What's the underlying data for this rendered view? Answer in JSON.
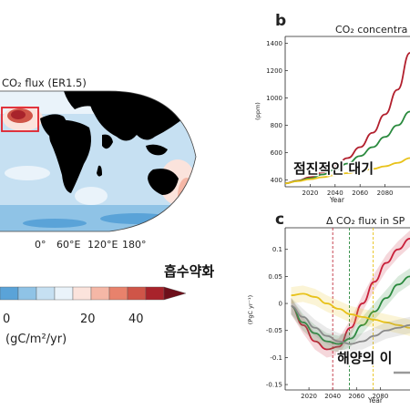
{
  "map_panel": {
    "title": "CO₂ flux (ER1.5)",
    "lon_ticks": [
      "0°",
      "60°E",
      "120°E",
      "180°"
    ],
    "colorbar": {
      "ticks": [
        "0",
        "20",
        "40"
      ],
      "unit": "(gC/m²/yr)",
      "colors": [
        "#5aa3d8",
        "#8fc3e6",
        "#c6e0f2",
        "#eaf3fa",
        "#fbe3dc",
        "#f5b7a6",
        "#e8826c",
        "#cf5548",
        "#a8232b",
        "#6d0f1a"
      ]
    },
    "annotation_ko": "흡수약화"
  },
  "panel_b": {
    "letter": "b",
    "title": "CO₂ concentra",
    "annotation_ko": "점진적인 대기",
    "chart_data": {
      "type": "line",
      "x": [
        2000,
        2010,
        2020,
        2030,
        2040,
        2050,
        2060,
        2070,
        2080,
        2090,
        2100
      ],
      "xlim": [
        2000,
        2100
      ],
      "ylim": [
        350,
        1450
      ],
      "y_ticks": [
        400,
        600,
        800,
        1000,
        1200,
        1400
      ],
      "x_ticks": [
        2020,
        2040,
        2060,
        2080
      ],
      "ylabel": "(ppm)",
      "xlabel": "Year",
      "series": [
        {
          "color": "#b21f2d",
          "values": [
            375,
            395,
            420,
            455,
            500,
            560,
            640,
            745,
            880,
            1060,
            1330
          ]
        },
        {
          "color": "#2a8a3e",
          "values": [
            375,
            393,
            412,
            440,
            475,
            520,
            575,
            640,
            715,
            800,
            900
          ]
        },
        {
          "color": "#e8c21a",
          "values": [
            375,
            391,
            405,
            420,
            435,
            450,
            465,
            480,
            500,
            525,
            560
          ]
        }
      ]
    }
  },
  "panel_c": {
    "letter": "c",
    "title": "Δ CO₂ flux in SP",
    "annotation_ko": "해양의 이",
    "chart_data": {
      "type": "line",
      "x": [
        2005,
        2015,
        2025,
        2035,
        2045,
        2055,
        2065,
        2075,
        2085,
        2095,
        2105
      ],
      "xlim": [
        2000,
        2105
      ],
      "ylim": [
        -0.16,
        0.14
      ],
      "y_ticks": [
        "0.1",
        "0.05",
        "0",
        "-0.05",
        "-0.1",
        "-0.15"
      ],
      "y_tick_values": [
        0.1,
        0.05,
        0,
        -0.05,
        -0.1,
        -0.15
      ],
      "x_ticks": [
        2020,
        2040,
        2060,
        2080
      ],
      "ylabel": "(PgC yr⁻¹)",
      "xlabel": "Year",
      "vlines": [
        {
          "x": 2040,
          "color": "#c0303f"
        },
        {
          "x": 2054,
          "color": "#2a8a3e"
        },
        {
          "x": 2074,
          "color": "#e8c21a"
        }
      ],
      "series": [
        {
          "color": "#c9203a",
          "values": [
            -0.005,
            -0.04,
            -0.07,
            -0.085,
            -0.08,
            -0.045,
            0.0,
            0.04,
            0.075,
            0.1,
            0.12
          ]
        },
        {
          "color": "#2a8a3e",
          "values": [
            -0.005,
            -0.035,
            -0.055,
            -0.07,
            -0.075,
            -0.065,
            -0.04,
            -0.015,
            0.01,
            0.035,
            0.05
          ]
        },
        {
          "color": "#e8c21a",
          "values": [
            0.015,
            0.018,
            0.012,
            0.0,
            -0.01,
            -0.02,
            -0.025,
            -0.03,
            -0.035,
            -0.04,
            -0.045
          ]
        },
        {
          "color": "#8a8a8a",
          "values": [
            -0.005,
            -0.025,
            -0.045,
            -0.06,
            -0.07,
            -0.075,
            -0.07,
            -0.06,
            -0.05,
            -0.045,
            -0.04
          ]
        }
      ]
    }
  }
}
